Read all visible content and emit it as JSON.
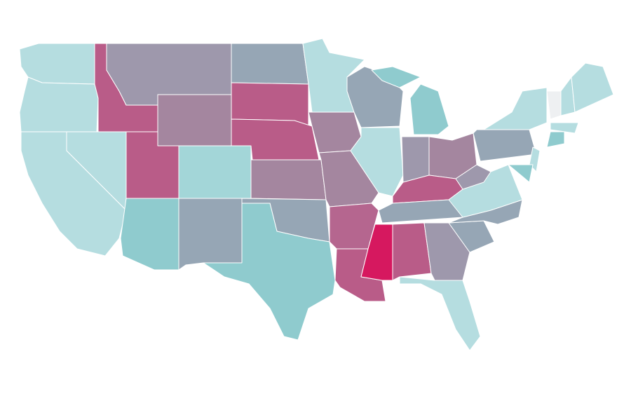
{
  "map": {
    "regions": [
      {
        "color": "#b5dde0"
      },
      {
        "color": "#b5dde0"
      },
      {
        "color": "#b5dde0"
      },
      {
        "color": "#b5dde0"
      },
      {
        "color": "#b95c88"
      },
      {
        "color": "#9e98ac"
      },
      {
        "color": "#a4869f"
      },
      {
        "color": "#b95c88"
      },
      {
        "color": "#a3d6d8"
      },
      {
        "color": "#8fcbce"
      },
      {
        "color": "#96a6b5"
      },
      {
        "color": "#96a6b5"
      },
      {
        "color": "#b95c88"
      },
      {
        "color": "#b95c88"
      },
      {
        "color": "#a4869f"
      },
      {
        "color": "#96a6b5"
      },
      {
        "color": "#8fcbce"
      },
      {
        "color": "#b5dde0"
      },
      {
        "color": "#a4869f"
      },
      {
        "color": "#a4869f"
      },
      {
        "color": "#b5668f"
      },
      {
        "color": "#b95c88"
      },
      {
        "color": "#96a6b5"
      },
      {
        "color": "#b5dde0"
      },
      {
        "color": "#8fcbce"
      },
      {
        "color": "#8fcbce"
      },
      {
        "color": "#9e98ac"
      },
      {
        "color": "#a4869f"
      },
      {
        "color": "#b95c88"
      },
      {
        "color": "#96a6b5"
      },
      {
        "color": "#d6185f"
      },
      {
        "color": "#b95c88"
      },
      {
        "color": "#9e98ac"
      },
      {
        "color": "#b5dde0"
      },
      {
        "color": "#96a6b5"
      },
      {
        "color": "#96a6b5"
      },
      {
        "color": "#b5dde0"
      },
      {
        "color": "#9e98ac"
      },
      {
        "color": "#96a6b5"
      },
      {
        "color": "#b5dde0"
      },
      {
        "color": "#b5dde0"
      },
      {
        "color": "#8fcbce"
      },
      {
        "color": "#eef0f2"
      },
      {
        "color": "#b5dde0"
      },
      {
        "color": "#b5dde0"
      },
      {
        "color": "#b5dde0"
      },
      {
        "color": "#8fcbce"
      }
    ]
  }
}
